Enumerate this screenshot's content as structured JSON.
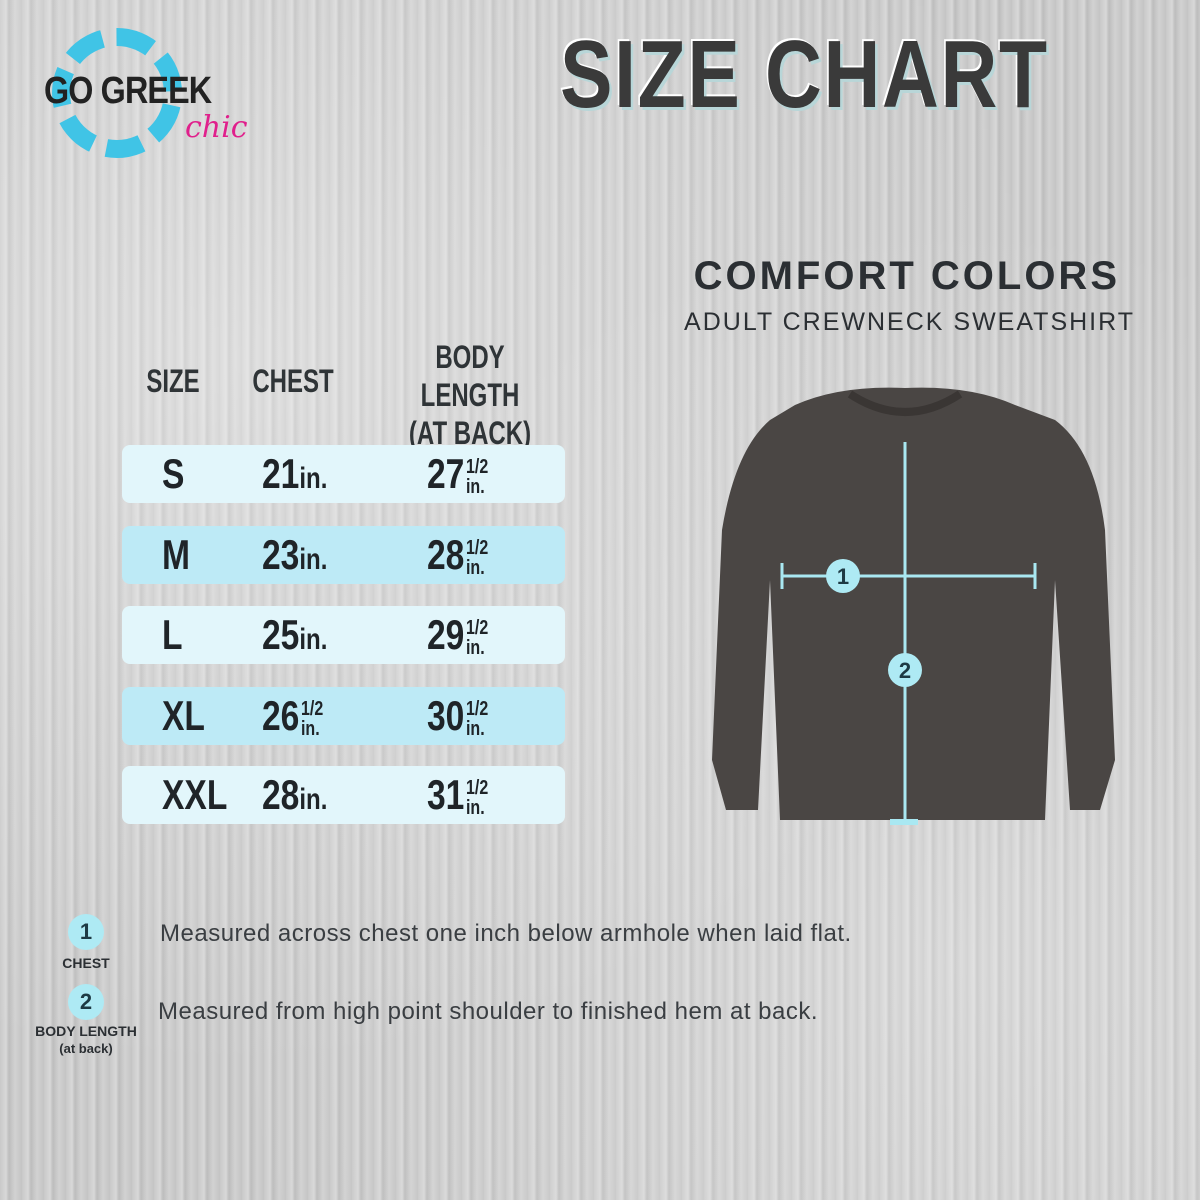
{
  "logo": {
    "main": "GO GREEK",
    "accent": "chic"
  },
  "title": "SIZE CHART",
  "product": {
    "brand": "COMFORT COLORS",
    "name": "ADULT CREWNECK SWEATSHIRT"
  },
  "table": {
    "headers": {
      "size": "SIZE",
      "chest": "CHEST",
      "length_line1": "BODY LENGTH",
      "length_line2": "(AT BACK)"
    },
    "rows": [
      {
        "size": "S",
        "chest": {
          "whole": "21",
          "fraction": "",
          "unit": "in."
        },
        "length": {
          "whole": "27",
          "fraction": "1/2",
          "unit": "in."
        }
      },
      {
        "size": "M",
        "chest": {
          "whole": "23",
          "fraction": "",
          "unit": "in."
        },
        "length": {
          "whole": "28",
          "fraction": "1/2",
          "unit": "in."
        }
      },
      {
        "size": "L",
        "chest": {
          "whole": "25",
          "fraction": "",
          "unit": "in."
        },
        "length": {
          "whole": "29",
          "fraction": "1/2",
          "unit": "in."
        }
      },
      {
        "size": "XL",
        "chest": {
          "whole": "26",
          "fraction": "1/2",
          "unit": "in."
        },
        "length": {
          "whole": "30",
          "fraction": "1/2",
          "unit": "in."
        }
      },
      {
        "size": "XXL",
        "chest": {
          "whole": "28",
          "fraction": "",
          "unit": "in."
        },
        "length": {
          "whole": "31",
          "fraction": "1/2",
          "unit": "in."
        }
      }
    ]
  },
  "diagram": {
    "marker1": "1",
    "marker2": "2",
    "garment_color": "#4a4644",
    "line_color": "#a9e8f2"
  },
  "legend": [
    {
      "number": "1",
      "label": "CHEST",
      "sublabel": "",
      "description": "Measured across chest one inch below armhole when laid flat."
    },
    {
      "number": "2",
      "label": "BODY LENGTH",
      "sublabel": "(at back)",
      "description": "Measured from high point shoulder to finished hem at back."
    }
  ],
  "colors": {
    "row_light": "#e2f6fb",
    "row_dark": "#bdeaf6",
    "logo_blue": "#40c4e6",
    "logo_pink": "#e0208c"
  }
}
